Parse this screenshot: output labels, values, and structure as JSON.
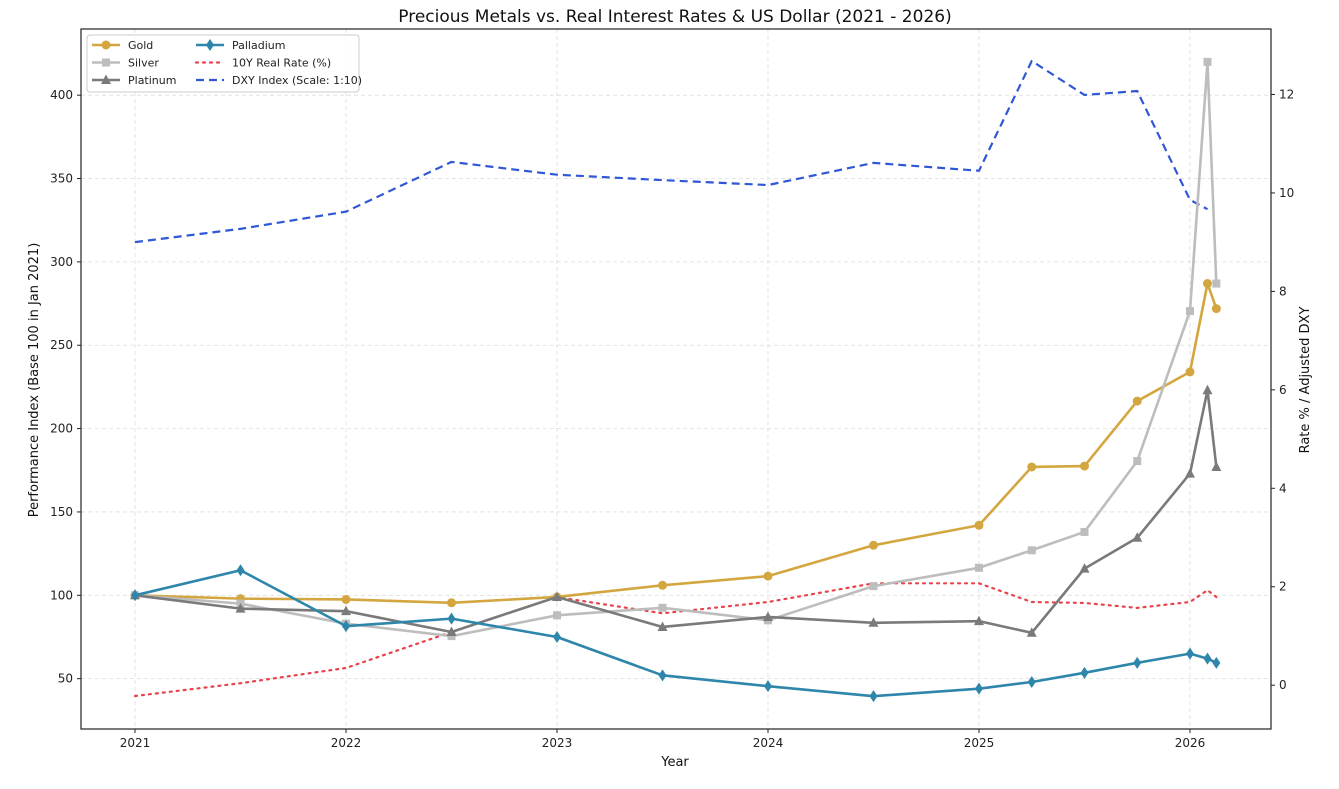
{
  "chart_data": {
    "type": "line",
    "title": "Precious Metals vs. Real Interest Rates & US Dollar (2021 - 2026)",
    "xlabel": "Year",
    "ylabel": "Performance Index (Base 100 in Jan 2021)",
    "ylabel_right": "Rate % / Adjusted DXY",
    "xlim": [
      2020.744,
      2026.384
    ],
    "ylim": [
      19.8,
      439.7
    ],
    "ylim_right": [
      -0.89,
      13.33
    ],
    "x_ticks": [
      2021,
      2022,
      2023,
      2024,
      2025,
      2026
    ],
    "x_tick_labels": [
      "2021",
      "2022",
      "2023",
      "2024",
      "2025",
      "2026"
    ],
    "y_ticks": [
      50,
      100,
      150,
      200,
      250,
      300,
      350,
      400
    ],
    "y_tick_labels": [
      "50",
      "100",
      "150",
      "200",
      "250",
      "300",
      "350",
      "400"
    ],
    "y_right_ticks": [
      0,
      2,
      4,
      6,
      8,
      10,
      12
    ],
    "y_right_tick_labels": [
      "0",
      "2",
      "4",
      "6",
      "8",
      "10",
      "12"
    ],
    "grid": true,
    "legend_placement": "top-left",
    "x": [
      2021.0,
      2021.5,
      2022.0,
      2022.5,
      2023.0,
      2023.5,
      2024.0,
      2024.5,
      2025.0,
      2025.25,
      2025.5,
      2025.75,
      2026.0,
      2026.083,
      2026.125
    ],
    "series": [
      {
        "name": "Gold",
        "axis": "left",
        "color": "#D4A640",
        "style": "solid",
        "marker": "circle",
        "values": [
          100,
          98,
          97.5,
          95.5,
          99,
          106,
          111.5,
          130,
          142,
          177,
          177.5,
          216.5,
          234,
          287,
          272
        ]
      },
      {
        "name": "Silver",
        "axis": "left",
        "color": "#BDBDBD",
        "style": "solid",
        "marker": "square",
        "values": [
          100,
          95,
          83,
          75.5,
          88,
          92.5,
          85,
          105.5,
          116.5,
          127,
          138,
          180.5,
          270.5,
          420,
          287
        ]
      },
      {
        "name": "Platinum",
        "axis": "left",
        "color": "#7A7A7A",
        "style": "solid",
        "marker": "triangle",
        "values": [
          100,
          92,
          90.5,
          78,
          99,
          81,
          87,
          83.5,
          84.5,
          77.5,
          116,
          134.5,
          173,
          223,
          177
        ]
      },
      {
        "name": "Palladium",
        "axis": "left",
        "color": "#2E86AB",
        "style": "solid",
        "marker": "diamond",
        "values": [
          100,
          115,
          81.5,
          86,
          75,
          52,
          45.5,
          39.5,
          44,
          48,
          53.5,
          59.5,
          65,
          62,
          59.5
        ]
      },
      {
        "name": "10Y Real Rate (%)",
        "axis": "right",
        "color": "#E8434B",
        "style": "dotted",
        "marker": "none",
        "values": [
          -0.22,
          0.04,
          0.35,
          1.08,
          1.79,
          1.46,
          1.69,
          2.07,
          2.07,
          1.69,
          1.67,
          1.57,
          1.69,
          1.93,
          1.79
        ]
      },
      {
        "name": "DXY Index (Scale: 1:10)",
        "axis": "right",
        "color": "#3057D5",
        "style": "dashed",
        "marker": "none",
        "values": [
          9.0,
          9.27,
          9.62,
          10.63,
          10.37,
          10.26,
          10.16,
          10.61,
          10.45,
          12.68,
          11.99,
          12.07,
          9.86,
          9.67,
          null
        ]
      }
    ]
  }
}
